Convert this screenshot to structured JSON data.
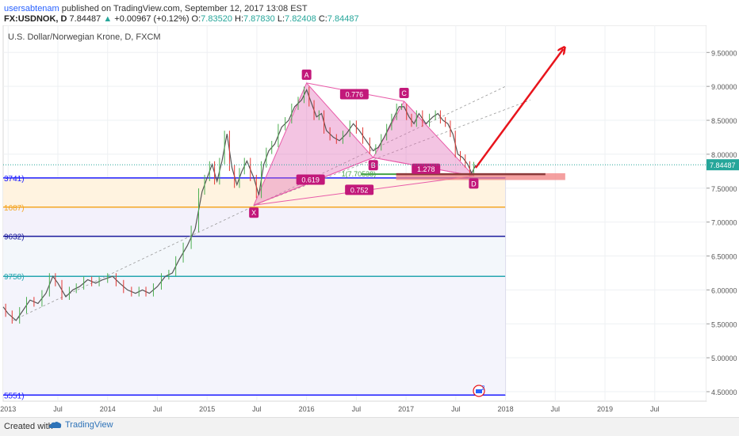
{
  "header": {
    "user": "usersabtenam",
    "published": "published on TradingView.com, September 12, 2017 13:08 EST",
    "symbol": "FX:USDNOK, D",
    "last": "7.84487",
    "change_arrow": "▲",
    "change": "+0.00967 (+0.12%)",
    "o_label": "O:",
    "o": "7.83520",
    "h_label": "H:",
    "h": "7.87830",
    "l_label": "L:",
    "l": "7.82408",
    "c_label": "C:",
    "c": "7.84487"
  },
  "footer": {
    "created_with": "Created with",
    "brand": "TradingView"
  },
  "chart_data": {
    "type": "line",
    "title": "U.S. Dollar/Norwegian Krone, D, FXCM",
    "y_ticks": [
      "9.50000",
      "9.00000",
      "8.50000",
      "8.00000",
      "7.50000",
      "7.00000",
      "6.50000",
      "6.00000",
      "5.50000",
      "5.00000",
      "4.50000"
    ],
    "y_tick_values": [
      9.5,
      9.0,
      8.5,
      8.0,
      7.5,
      7.0,
      6.5,
      6.0,
      5.5,
      5.0,
      4.5
    ],
    "ylim": [
      4.36,
      9.9
    ],
    "x_ticks": [
      "2013",
      "Jul",
      "2014",
      "Jul",
      "2015",
      "Jul",
      "2016",
      "Jul",
      "2017",
      "Jul",
      "2018",
      "Jul",
      "2019",
      "Jul"
    ],
    "x_tick_values": [
      2013.0,
      2013.5,
      2014.0,
      2014.5,
      2015.0,
      2015.5,
      2016.0,
      2016.5,
      2017.0,
      2017.5,
      2018.0,
      2018.5,
      2019.0,
      2019.5
    ],
    "xlim": [
      2012.95,
      2020.02
    ],
    "last_price_label": "7.84487",
    "last_price": 7.84487,
    "fib_levels": [
      {
        "label": "3741)",
        "value": 7.65,
        "color": "#1a1aff"
      },
      {
        "label": "1687)",
        "value": 7.22,
        "color": "#f5a623"
      },
      {
        "label": "9632)",
        "value": 6.79,
        "color": "#1a1a9c"
      },
      {
        "label": "9758)",
        "value": 6.2,
        "color": "#26a6b0"
      },
      {
        "label": "5551)",
        "value": 4.45,
        "color": "#1a1aff"
      }
    ],
    "fib_end_x": 2018.0,
    "price_points": [
      [
        2012.95,
        5.75
      ],
      [
        2013.0,
        5.65
      ],
      [
        2013.08,
        5.55
      ],
      [
        2013.15,
        5.7
      ],
      [
        2013.22,
        5.85
      ],
      [
        2013.3,
        5.8
      ],
      [
        2013.38,
        5.95
      ],
      [
        2013.45,
        6.2
      ],
      [
        2013.5,
        6.1
      ],
      [
        2013.58,
        5.9
      ],
      [
        2013.65,
        6.0
      ],
      [
        2013.72,
        6.05
      ],
      [
        2013.8,
        6.15
      ],
      [
        2013.88,
        6.1
      ],
      [
        2013.95,
        6.15
      ],
      [
        2014.05,
        6.2
      ],
      [
        2014.12,
        6.1
      ],
      [
        2014.2,
        6.0
      ],
      [
        2014.28,
        5.95
      ],
      [
        2014.35,
        6.0
      ],
      [
        2014.42,
        5.95
      ],
      [
        2014.5,
        6.05
      ],
      [
        2014.58,
        6.2
      ],
      [
        2014.65,
        6.25
      ],
      [
        2014.72,
        6.45
      ],
      [
        2014.8,
        6.65
      ],
      [
        2014.88,
        6.9
      ],
      [
        2014.95,
        7.45
      ],
      [
        2015.0,
        7.65
      ],
      [
        2015.05,
        7.85
      ],
      [
        2015.1,
        7.6
      ],
      [
        2015.15,
        7.9
      ],
      [
        2015.2,
        8.3
      ],
      [
        2015.25,
        7.8
      ],
      [
        2015.3,
        7.55
      ],
      [
        2015.35,
        7.75
      ],
      [
        2015.4,
        7.9
      ],
      [
        2015.47,
        7.65
      ],
      [
        2015.52,
        7.4
      ],
      [
        2015.57,
        7.85
      ],
      [
        2015.62,
        8.05
      ],
      [
        2015.68,
        8.15
      ],
      [
        2015.75,
        8.4
      ],
      [
        2015.82,
        8.5
      ],
      [
        2015.88,
        8.7
      ],
      [
        2015.95,
        8.8
      ],
      [
        2016.0,
        8.95
      ],
      [
        2016.05,
        8.75
      ],
      [
        2016.1,
        8.55
      ],
      [
        2016.15,
        8.6
      ],
      [
        2016.2,
        8.35
      ],
      [
        2016.27,
        8.25
      ],
      [
        2016.33,
        8.2
      ],
      [
        2016.4,
        8.3
      ],
      [
        2016.47,
        8.45
      ],
      [
        2016.53,
        8.35
      ],
      [
        2016.6,
        8.2
      ],
      [
        2016.67,
        8.05
      ],
      [
        2016.72,
        8.1
      ],
      [
        2016.78,
        8.25
      ],
      [
        2016.83,
        8.4
      ],
      [
        2016.88,
        8.55
      ],
      [
        2016.93,
        8.7
      ],
      [
        2016.98,
        8.7
      ],
      [
        2017.03,
        8.55
      ],
      [
        2017.08,
        8.45
      ],
      [
        2017.13,
        8.6
      ],
      [
        2017.2,
        8.45
      ],
      [
        2017.27,
        8.55
      ],
      [
        2017.32,
        8.6
      ],
      [
        2017.37,
        8.5
      ],
      [
        2017.42,
        8.45
      ],
      [
        2017.47,
        8.3
      ],
      [
        2017.52,
        8.0
      ],
      [
        2017.57,
        7.95
      ],
      [
        2017.62,
        7.85
      ],
      [
        2017.66,
        7.72
      ],
      [
        2017.7,
        7.84
      ]
    ],
    "harmonic": {
      "points": [
        {
          "label": "X",
          "x": 2015.47,
          "y": 7.25
        },
        {
          "label": "A",
          "x": 2016.0,
          "y": 9.05
        },
        {
          "label": "B",
          "x": 2016.67,
          "y": 7.95
        },
        {
          "label": "C",
          "x": 2016.98,
          "y": 8.78
        },
        {
          "label": "D",
          "x": 2017.68,
          "y": 7.68
        }
      ],
      "ratios": [
        {
          "label": "0.776",
          "x": 2016.48,
          "y": 8.88
        },
        {
          "label": "0.619",
          "x": 2016.04,
          "y": 7.62
        },
        {
          "label": "0.752",
          "x": 2016.53,
          "y": 7.47
        },
        {
          "label": "1.278",
          "x": 2017.2,
          "y": 7.78
        }
      ],
      "fill_color": "#e06cb6",
      "line_color": "#e85aa8"
    },
    "target_label": "1(7.70538)",
    "target_value": 7.70538,
    "trend_arrow": {
      "from": [
        2017.7,
        7.8
      ],
      "to": [
        2018.58,
        9.55
      ],
      "color": "#e8141c"
    },
    "channel_lines": [
      {
        "from": [
          2013.05,
          5.55
        ],
        "to": [
          2018.0,
          9.0
        ]
      },
      {
        "from": [
          2015.47,
          7.25
        ],
        "to": [
          2018.25,
          8.8
        ]
      }
    ],
    "zone": {
      "x0": 2016.9,
      "x1": 2018.6,
      "y0": 7.62,
      "y1": 7.72,
      "color": "#f08080"
    }
  }
}
